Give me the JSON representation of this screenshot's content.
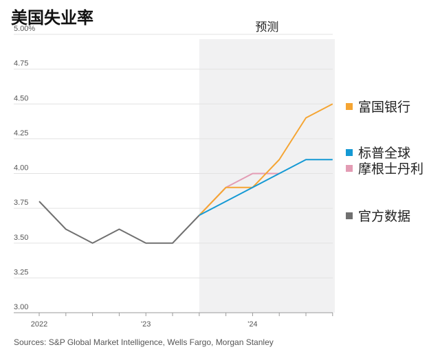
{
  "title": "美国失业率",
  "source": "Sources: S&P Global Market Intelligence, Wells Fargo, Morgan Stanley",
  "chart_data": {
    "type": "line",
    "title": "美国失业率",
    "forecast_label": "预测",
    "forecast_start_index": 6,
    "ylim": [
      3.0,
      5.0
    ],
    "yticks": [
      3.0,
      3.25,
      3.5,
      3.75,
      4.0,
      4.25,
      4.5,
      4.75,
      5.0
    ],
    "ytick_labels": [
      "3.00",
      "3.25",
      "3.50",
      "3.75",
      "4.00",
      "4.25",
      "4.50",
      "4.75",
      "5.00%"
    ],
    "x": [
      "2022 Q1",
      "2022 Q2",
      "2022 Q3",
      "2022 Q4",
      "2023 Q1",
      "2023 Q2",
      "2023 Q3",
      "2023 Q4",
      "2024 Q1",
      "2024 Q2",
      "2024 Q3",
      "2024 Q4"
    ],
    "xtick_labels": [
      {
        "index": 0,
        "label": "2022"
      },
      {
        "index": 4,
        "label": "'23"
      },
      {
        "index": 8,
        "label": "'24"
      }
    ],
    "series": [
      {
        "name": "官方数据",
        "color": "#707070",
        "values": [
          3.8,
          3.6,
          3.5,
          3.6,
          3.5,
          3.5,
          3.7,
          null,
          null,
          null,
          null,
          null
        ]
      },
      {
        "name": "摩根士丹利",
        "color": "#e39cb4",
        "values": [
          null,
          null,
          null,
          null,
          null,
          null,
          3.7,
          3.9,
          4.0,
          4.0,
          null,
          null
        ]
      },
      {
        "name": "富国银行",
        "color": "#f5a533",
        "values": [
          null,
          null,
          null,
          null,
          null,
          null,
          3.7,
          3.9,
          3.9,
          4.1,
          4.4,
          4.5
        ]
      },
      {
        "name": "标普全球",
        "color": "#1499d4",
        "values": [
          null,
          null,
          null,
          null,
          null,
          null,
          3.7,
          3.8,
          3.9,
          4.0,
          4.1,
          4.1
        ]
      }
    ],
    "legend": [
      {
        "name": "富国银行",
        "color": "#f5a533"
      },
      {
        "name": "标普全球",
        "color": "#1499d4"
      },
      {
        "name": "摩根士丹利",
        "color": "#e39cb4"
      },
      {
        "name": "官方数据",
        "color": "#707070"
      }
    ]
  }
}
